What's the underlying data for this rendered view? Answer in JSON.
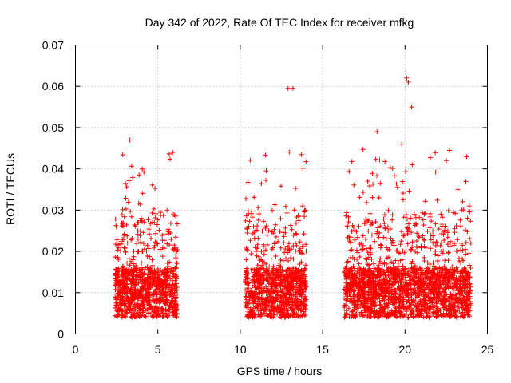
{
  "chart_data": {
    "type": "scatter",
    "title": "Day 342 of 2022, Rate Of TEC Index for receiver mfkg",
    "xlabel": "GPS time / hours",
    "ylabel": "ROTI / TECUs",
    "xlim": [
      0,
      25
    ],
    "ylim": [
      0,
      0.07
    ],
    "xticks": [
      "0",
      "5",
      "10",
      "15",
      "20",
      "25"
    ],
    "yticks": [
      "0",
      "0.01",
      "0.02",
      "0.03",
      "0.04",
      "0.05",
      "0.06",
      "0.07"
    ],
    "grid": true,
    "marker": "+",
    "series_color": "#ff0000",
    "segments": [
      {
        "start": 2.4,
        "end": 6.2
      },
      {
        "start": 10.3,
        "end": 14.0
      },
      {
        "start": 16.3,
        "end": 24.0
      }
    ],
    "notable_points": [
      {
        "x": 3.3,
        "y": 0.047
      },
      {
        "x": 5.9,
        "y": 0.044
      },
      {
        "x": 12.9,
        "y": 0.0595
      },
      {
        "x": 13.2,
        "y": 0.0595
      },
      {
        "x": 18.3,
        "y": 0.049
      },
      {
        "x": 20.1,
        "y": 0.062
      },
      {
        "x": 20.2,
        "y": 0.061
      },
      {
        "x": 20.4,
        "y": 0.055
      },
      {
        "x": 19.8,
        "y": 0.046
      },
      {
        "x": 23.9,
        "y": 0.031
      }
    ]
  }
}
